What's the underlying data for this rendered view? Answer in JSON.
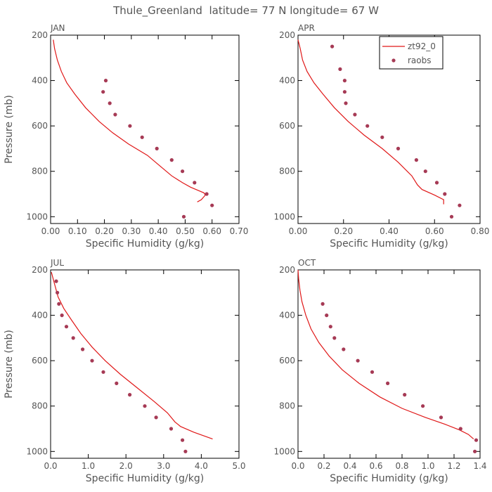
{
  "figure_title": "Thule_Greenland  latitude= 77 N longitude= 67 W",
  "colors": {
    "model": "#e01818",
    "obs": "#a63a55"
  },
  "legend": {
    "model_label": "zt92_0",
    "obs_label": "raobs"
  },
  "chart_data": [
    {
      "type": "line",
      "title": "JAN",
      "xlabel": "Specific Humidity (g/kg)",
      "ylabel": "Pressure (mb)",
      "xlim": [
        0,
        0.7
      ],
      "ylim": [
        200,
        1030
      ],
      "xticks": [
        0.0,
        0.1,
        0.2,
        0.3,
        0.4,
        0.5,
        0.6,
        0.7
      ],
      "xtick_labels": [
        "0.00",
        "0.10",
        "0.20",
        "0.30",
        "0.40",
        "0.50",
        "0.60",
        "0.70"
      ],
      "yticks": [
        200,
        400,
        600,
        800,
        1000
      ],
      "ytick_labels": [
        "200",
        "400",
        "600",
        "800",
        "1000"
      ],
      "series": [
        {
          "name": "zt92_0",
          "kind": "line",
          "x": [
            0.01,
            0.015,
            0.025,
            0.04,
            0.06,
            0.09,
            0.13,
            0.18,
            0.23,
            0.29,
            0.36,
            0.41,
            0.45,
            0.49,
            0.52,
            0.55,
            0.57,
            0.575,
            0.56,
            0.545
          ],
          "y": [
            220,
            260,
            310,
            360,
            410,
            460,
            520,
            580,
            630,
            680,
            730,
            780,
            820,
            850,
            870,
            885,
            895,
            905,
            925,
            935
          ]
        },
        {
          "name": "raobs",
          "kind": "scatter",
          "x": [
            0.205,
            0.195,
            0.22,
            0.24,
            0.295,
            0.34,
            0.395,
            0.45,
            0.49,
            0.535,
            0.58,
            0.6,
            0.495
          ],
          "y": [
            400,
            450,
            500,
            550,
            600,
            650,
            700,
            750,
            800,
            850,
            900,
            950,
            1000
          ]
        }
      ]
    },
    {
      "type": "line",
      "title": "APR",
      "xlabel": "Specific Humidity (g/kg)",
      "ylabel": "",
      "xlim": [
        0,
        0.8
      ],
      "ylim": [
        200,
        1030
      ],
      "xticks": [
        0.0,
        0.2,
        0.4,
        0.6,
        0.8
      ],
      "xtick_labels": [
        "0.00",
        "0.20",
        "0.40",
        "0.60",
        "0.80"
      ],
      "yticks": [
        200,
        400,
        600,
        800,
        1000
      ],
      "ytick_labels": [
        "200",
        "400",
        "600",
        "800",
        "1000"
      ],
      "series": [
        {
          "name": "zt92_0",
          "kind": "line",
          "x": [
            0.0,
            0.01,
            0.02,
            0.04,
            0.07,
            0.11,
            0.16,
            0.22,
            0.29,
            0.37,
            0.44,
            0.5,
            0.525,
            0.545,
            0.6,
            0.64,
            0.64
          ],
          "y": [
            220,
            260,
            310,
            360,
            410,
            460,
            520,
            580,
            640,
            700,
            760,
            820,
            860,
            880,
            905,
            925,
            945
          ]
        },
        {
          "name": "raobs",
          "kind": "scatter",
          "x": [
            0.15,
            0.185,
            0.205,
            0.205,
            0.21,
            0.25,
            0.305,
            0.37,
            0.44,
            0.52,
            0.56,
            0.61,
            0.645,
            0.71,
            0.675
          ],
          "y": [
            250,
            350,
            400,
            450,
            500,
            550,
            600,
            650,
            700,
            750,
            800,
            850,
            900,
            950,
            1000
          ]
        }
      ]
    },
    {
      "type": "line",
      "title": "JUL",
      "xlabel": "Specific Humidity (g/kg)",
      "ylabel": "Pressure (mb)",
      "xlim": [
        0,
        5.0
      ],
      "ylim": [
        200,
        1030
      ],
      "xticks": [
        0.0,
        1.0,
        2.0,
        3.0,
        4.0,
        5.0
      ],
      "xtick_labels": [
        "0.0",
        "1.0",
        "2.0",
        "3.0",
        "4.0",
        "5.0"
      ],
      "yticks": [
        200,
        400,
        600,
        800,
        1000
      ],
      "ytick_labels": [
        "200",
        "400",
        "600",
        "800",
        "1000"
      ],
      "series": [
        {
          "name": "zt92_0",
          "kind": "line",
          "x": [
            0.02,
            0.1,
            0.2,
            0.35,
            0.55,
            0.8,
            1.1,
            1.45,
            1.85,
            2.3,
            2.75,
            3.1,
            3.3,
            3.45,
            3.8,
            4.3
          ],
          "y": [
            210,
            260,
            320,
            370,
            420,
            480,
            540,
            600,
            660,
            720,
            780,
            830,
            870,
            890,
            915,
            945
          ]
        },
        {
          "name": "raobs",
          "kind": "scatter",
          "x": [
            0.15,
            0.18,
            0.22,
            0.3,
            0.42,
            0.6,
            0.85,
            1.1,
            1.4,
            1.75,
            2.1,
            2.5,
            2.8,
            3.2,
            3.5,
            3.58
          ],
          "y": [
            250,
            300,
            350,
            400,
            450,
            500,
            550,
            600,
            650,
            700,
            750,
            800,
            850,
            900,
            950,
            1000
          ]
        }
      ]
    },
    {
      "type": "line",
      "title": "OCT",
      "xlabel": "Specific Humidity (g/kg)",
      "ylabel": "",
      "xlim": [
        0,
        1.4
      ],
      "ylim": [
        200,
        1030
      ],
      "xticks": [
        0.0,
        0.2,
        0.4,
        0.6,
        0.8,
        1.0,
        1.2,
        1.4
      ],
      "xtick_labels": [
        "0.0",
        "0.2",
        "0.4",
        "0.6",
        "0.8",
        "1.0",
        "1.2",
        "1.4"
      ],
      "yticks": [
        200,
        400,
        600,
        800,
        1000
      ],
      "ytick_labels": [
        "200",
        "400",
        "600",
        "800",
        "1000"
      ],
      "series": [
        {
          "name": "zt92_0",
          "kind": "line",
          "x": [
            0.0,
            0.005,
            0.015,
            0.03,
            0.06,
            0.1,
            0.16,
            0.24,
            0.34,
            0.47,
            0.63,
            0.8,
            0.98,
            1.13,
            1.24,
            1.31,
            1.35
          ],
          "y": [
            200,
            240,
            290,
            340,
            400,
            460,
            520,
            580,
            640,
            700,
            760,
            810,
            850,
            880,
            905,
            925,
            945
          ]
        },
        {
          "name": "raobs",
          "kind": "scatter",
          "x": [
            0.19,
            0.22,
            0.25,
            0.28,
            0.35,
            0.46,
            0.57,
            0.69,
            0.82,
            0.96,
            1.1,
            1.25,
            1.37,
            1.36
          ],
          "y": [
            350,
            400,
            450,
            500,
            550,
            600,
            650,
            700,
            750,
            800,
            850,
            900,
            950,
            1000
          ]
        }
      ]
    }
  ]
}
